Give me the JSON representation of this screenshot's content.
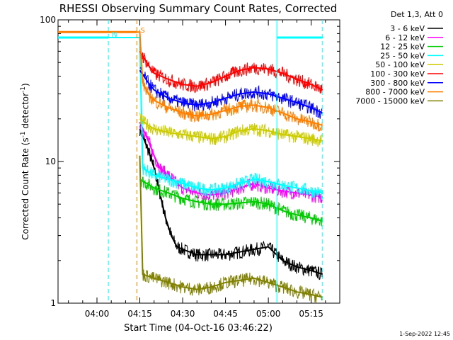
{
  "chart_data": {
    "type": "line",
    "title": "RHESSI Observing Summary Count Rates, Corrected",
    "xlabel": "Start Time (04-Oct-16 03:46:22)",
    "ylabel_parts": [
      "Corrected Count Rate (s",
      "-1",
      " detector",
      "-1",
      ")"
    ],
    "y_scale": "log",
    "ylim": [
      1,
      100
    ],
    "y_ticks": [
      {
        "value": 1,
        "label": "1"
      },
      {
        "value": 10,
        "label": "10"
      },
      {
        "value": 100,
        "label": "100"
      }
    ],
    "xlim": [
      "03:46:22",
      "05:25:00"
    ],
    "x_ticks": [
      "04:00",
      "04:15",
      "04:30",
      "04:45",
      "05:00",
      "05:15"
    ],
    "legend_title": "Det 1,3, Att 0",
    "legend_position": "top-right",
    "grid": false,
    "series": [
      {
        "name": "3 - 6 keV",
        "color": "#000000",
        "x": [
          "04:15",
          "04:18",
          "04:20",
          "04:22",
          "04:24",
          "04:26",
          "04:28",
          "04:30",
          "04:35",
          "04:40",
          "04:45",
          "04:50",
          "04:55",
          "05:00",
          "05:05",
          "05:10",
          "05:15",
          "05:19"
        ],
        "values": [
          17,
          12,
          9,
          6,
          4,
          3,
          2.5,
          2.4,
          2.2,
          2.2,
          2.2,
          2.3,
          2.4,
          2.5,
          2.0,
          1.8,
          1.7,
          1.6
        ]
      },
      {
        "name": "6 - 12 keV",
        "color": "#ff00ff",
        "x": [
          "04:15",
          "04:18",
          "04:20",
          "04:22",
          "04:25",
          "04:28",
          "04:30",
          "04:35",
          "04:40",
          "04:45",
          "04:50",
          "04:55",
          "05:00",
          "05:05",
          "05:10",
          "05:15",
          "05:19"
        ],
        "values": [
          19,
          14,
          11,
          9,
          8,
          7,
          6.5,
          6,
          5.8,
          6,
          6.5,
          7,
          6.5,
          6.2,
          6,
          5.8,
          5.6
        ]
      },
      {
        "name": "12 - 25 keV",
        "color": "#00cc00",
        "x": [
          "04:15",
          "04:20",
          "04:25",
          "04:30",
          "04:35",
          "04:40",
          "04:45",
          "04:50",
          "04:55",
          "05:00",
          "05:05",
          "05:10",
          "05:15",
          "05:19"
        ],
        "values": [
          7.5,
          6.5,
          6,
          5.5,
          5.2,
          5,
          5,
          5.1,
          5.2,
          5,
          4.5,
          4.2,
          4,
          3.8
        ]
      },
      {
        "name": "25 - 50 keV",
        "color": "#00ffff",
        "x": [
          "03:46",
          "04:15",
          "04:16",
          "04:20",
          "04:25",
          "04:30",
          "04:35",
          "04:40",
          "04:45",
          "04:50",
          "04:55",
          "05:00",
          "05:05",
          "05:10",
          "05:15",
          "05:19"
        ],
        "values": [
          75,
          75,
          9,
          8,
          7.5,
          7,
          6.5,
          6.3,
          6.5,
          7,
          7.5,
          7.2,
          6.8,
          6.5,
          6.2,
          6
        ]
      },
      {
        "name": "50 - 100 keV",
        "color": "#cccc00",
        "x": [
          "04:15",
          "04:18",
          "04:20",
          "04:25",
          "04:30",
          "04:35",
          "04:40",
          "04:45",
          "04:50",
          "04:55",
          "05:00",
          "05:05",
          "05:10",
          "05:15",
          "05:19"
        ],
        "values": [
          20,
          18,
          17,
          16,
          15.5,
          15,
          14.5,
          15,
          16.5,
          17,
          16.5,
          15.5,
          15,
          14.5,
          14
        ]
      },
      {
        "name": "100 - 300 keV",
        "color": "#ff0000",
        "x": [
          "04:15",
          "04:18",
          "04:20",
          "04:25",
          "04:30",
          "04:35",
          "04:40",
          "04:45",
          "04:50",
          "04:55",
          "05:00",
          "05:05",
          "05:10",
          "05:15",
          "05:19"
        ],
        "values": [
          60,
          48,
          42,
          38,
          35,
          34,
          36,
          40,
          44,
          46,
          45,
          42,
          38,
          35,
          32
        ]
      },
      {
        "name": "300 - 800 keV",
        "color": "#0000ff",
        "x": [
          "04:15",
          "04:18",
          "04:20",
          "04:25",
          "04:30",
          "04:35",
          "04:40",
          "04:45",
          "04:50",
          "04:55",
          "05:00",
          "05:05",
          "05:10",
          "05:15",
          "05:19"
        ],
        "values": [
          44,
          36,
          32,
          28,
          26,
          25,
          26,
          28,
          30,
          31,
          30,
          28,
          26,
          24,
          22
        ]
      },
      {
        "name": "800 - 7000 keV",
        "color": "#ff8000",
        "x": [
          "03:46",
          "04:15",
          "04:16",
          "04:18",
          "04:20",
          "04:25",
          "04:30",
          "04:35",
          "04:40",
          "04:45",
          "04:50",
          "04:55",
          "05:00",
          "05:05",
          "05:10",
          "05:15",
          "05:19"
        ],
        "values": [
          82,
          82,
          36,
          30,
          27,
          24,
          22,
          21,
          21.5,
          23,
          24.5,
          25,
          24,
          22,
          20,
          19,
          18
        ]
      },
      {
        "name": "7000 - 15000 keV",
        "color": "#808000",
        "x": [
          "04:15",
          "04:16",
          "04:20",
          "04:25",
          "04:30",
          "04:35",
          "04:40",
          "04:45",
          "04:50",
          "04:55",
          "05:00",
          "05:05",
          "05:10",
          "05:15",
          "05:19"
        ],
        "values": [
          11,
          1.6,
          1.5,
          1.4,
          1.3,
          1.25,
          1.3,
          1.4,
          1.45,
          1.5,
          1.4,
          1.3,
          1.2,
          1.15,
          1.1
        ]
      }
    ],
    "annotations": [
      {
        "label": "S",
        "type": "vline",
        "x": "04:14",
        "color": "#ff8000",
        "line_style": "dashed"
      },
      {
        "label": "N",
        "type": "vline",
        "x": "04:04",
        "color": "#00ffff",
        "line_style": "dashed"
      },
      {
        "label": "",
        "type": "vline",
        "x": "05:03",
        "color": "#00ffff",
        "line_style": "solid"
      },
      {
        "label": "",
        "type": "vline",
        "x": "05:19",
        "color": "#00ffff",
        "line_style": "dashed"
      }
    ],
    "bands": [
      {
        "name": "night",
        "color": "#00ffff",
        "value": 75,
        "segments": [
          [
            "03:46",
            "04:04"
          ],
          [
            "05:03",
            "05:19"
          ]
        ]
      },
      {
        "name": "saa",
        "color": "#ff8000",
        "value": 82,
        "segments": [
          [
            "03:46",
            "04:14"
          ]
        ]
      }
    ]
  },
  "footer": {
    "date": "1-Sep-2022 12:45"
  }
}
